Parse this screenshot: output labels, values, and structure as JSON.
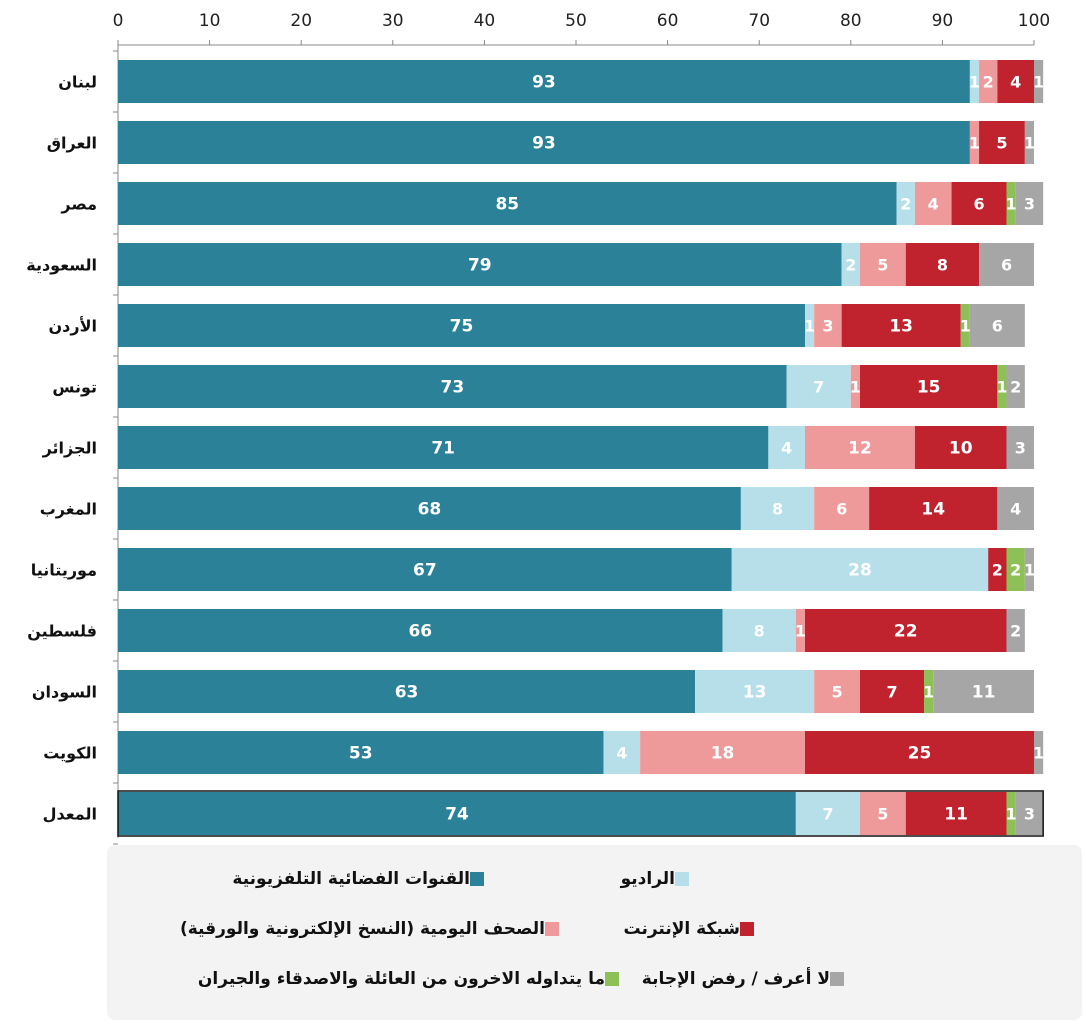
{
  "chart_data": {
    "type": "bar",
    "orientation": "horizontal",
    "stacked": true,
    "title": "",
    "xlabel": "",
    "ylabel": "",
    "xlim": [
      0,
      100
    ],
    "x_ticks": [
      "0",
      "10",
      "20",
      "30",
      "40",
      "50",
      "60",
      "70",
      "80",
      "90",
      "100"
    ],
    "grid": false,
    "legend_position": "bottom",
    "categories": [
      "لبنان",
      "العراق",
      "مصر",
      "السعودية",
      "الأردن",
      "تونس",
      "الجزائر",
      "المغرب",
      "موريتانيا",
      "فلسطين",
      "السودان",
      "الكويت",
      "المعدل"
    ],
    "series": [
      {
        "name": "القنوات الفضائية التلفزيونية",
        "color": "#2b8197",
        "label_color": "#ffffff",
        "values": [
          93,
          93,
          85,
          79,
          75,
          73,
          71,
          68,
          67,
          66,
          63,
          53,
          74
        ]
      },
      {
        "name": "الراديو",
        "color": "#b7dfea",
        "label_color": "#ffffff",
        "values": [
          1,
          0,
          2,
          2,
          1,
          7,
          4,
          8,
          28,
          8,
          13,
          4,
          7
        ]
      },
      {
        "name": "الصحف اليومية (النسخ الإلكترونية والورقية)",
        "color": "#ef9a9a",
        "label_color": "#ffffff",
        "values": [
          2,
          1,
          4,
          5,
          3,
          1,
          12,
          6,
          0,
          1,
          5,
          18,
          5
        ]
      },
      {
        "name": "شبكة الإنترنت",
        "color": "#c0222e",
        "label_color": "#ffffff",
        "values": [
          4,
          5,
          6,
          8,
          13,
          15,
          10,
          14,
          2,
          22,
          7,
          25,
          11
        ]
      },
      {
        "name": "ما يتداوله الاخرون من العائلة والاصدقاء والجيران",
        "color": "#8dc056",
        "label_color": "#ffffff",
        "values": [
          0,
          0,
          1,
          0,
          1,
          1,
          0,
          0,
          2,
          0,
          1,
          0,
          1
        ]
      },
      {
        "name": "لا أعرف / رفض الإجابة",
        "color": "#a6a6a6",
        "label_color": "#ffffff",
        "values": [
          1,
          1,
          3,
          6,
          6,
          2,
          3,
          4,
          1,
          2,
          11,
          1,
          3
        ]
      }
    ],
    "highlight_category": "المعدل"
  },
  "legend": [
    {
      "label": "القنوات الفضائية التلفزيونية",
      "color": "#2b8197"
    },
    {
      "label": "الراديو",
      "color": "#b7dfea"
    },
    {
      "label": "الصحف اليومية (النسخ الإلكترونية والورقية)",
      "color": "#ef9a9a"
    },
    {
      "label": "شبكة الإنترنت",
      "color": "#c0222e"
    },
    {
      "label": "ما يتداوله الاخرون من العائلة والاصدقاء والجيران",
      "color": "#8dc056"
    },
    {
      "label": "لا أعرف / رفض الإجابة",
      "color": "#a6a6a6"
    }
  ]
}
